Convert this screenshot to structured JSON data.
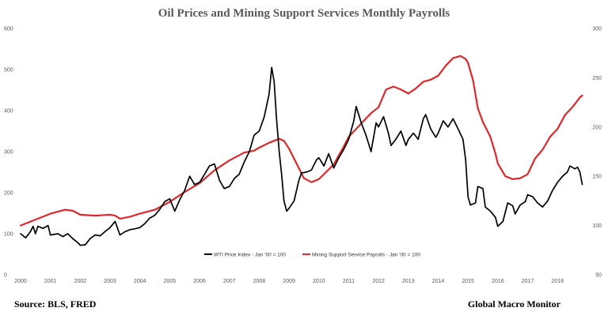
{
  "chart_data": {
    "type": "line",
    "title": "Oil Prices and Mining Support Services Monthly Payrolls",
    "x_ticks": [
      "2000",
      "2001",
      "2002",
      "2003",
      "2004",
      "2005",
      "2006",
      "2007",
      "2008",
      "2009",
      "2010",
      "2011",
      "2012",
      "2013",
      "2014",
      "2015",
      "2016",
      "2017",
      "2018"
    ],
    "left_axis": {
      "ylim": [
        0,
        600
      ],
      "ticks": [
        "0",
        "100",
        "200",
        "300",
        "400",
        "500",
        "600"
      ]
    },
    "right_axis": {
      "ylim": [
        50,
        300
      ],
      "ticks": [
        "50",
        "100",
        "150",
        "200",
        "250",
        "300"
      ]
    },
    "grid": false,
    "legend_position": "bottom-center",
    "series": [
      {
        "name": "WTI Price Index - Jan '00 = 100",
        "axis": "left",
        "color": "#000000",
        "points": [
          [
            2000.0,
            100
          ],
          [
            2000.17,
            90
          ],
          [
            2000.33,
            105
          ],
          [
            2000.42,
            118
          ],
          [
            2000.5,
            100
          ],
          [
            2000.58,
            118
          ],
          [
            2000.75,
            113
          ],
          [
            2000.92,
            120
          ],
          [
            2001.0,
            97
          ],
          [
            2001.25,
            100
          ],
          [
            2001.42,
            93
          ],
          [
            2001.58,
            100
          ],
          [
            2001.75,
            88
          ],
          [
            2001.92,
            78
          ],
          [
            2002.0,
            72
          ],
          [
            2002.17,
            73
          ],
          [
            2002.33,
            88
          ],
          [
            2002.5,
            97
          ],
          [
            2002.67,
            95
          ],
          [
            2002.83,
            105
          ],
          [
            2003.0,
            115
          ],
          [
            2003.17,
            130
          ],
          [
            2003.33,
            97
          ],
          [
            2003.5,
            105
          ],
          [
            2003.67,
            110
          ],
          [
            2003.83,
            112
          ],
          [
            2004.0,
            115
          ],
          [
            2004.17,
            125
          ],
          [
            2004.33,
            138
          ],
          [
            2004.5,
            145
          ],
          [
            2004.67,
            160
          ],
          [
            2004.83,
            178
          ],
          [
            2005.0,
            185
          ],
          [
            2005.17,
            155
          ],
          [
            2005.33,
            182
          ],
          [
            2005.5,
            205
          ],
          [
            2005.67,
            240
          ],
          [
            2005.83,
            220
          ],
          [
            2006.0,
            225
          ],
          [
            2006.17,
            245
          ],
          [
            2006.33,
            265
          ],
          [
            2006.5,
            270
          ],
          [
            2006.67,
            230
          ],
          [
            2006.83,
            210
          ],
          [
            2007.0,
            215
          ],
          [
            2007.17,
            235
          ],
          [
            2007.33,
            245
          ],
          [
            2007.5,
            275
          ],
          [
            2007.67,
            300
          ],
          [
            2007.83,
            340
          ],
          [
            2008.0,
            350
          ],
          [
            2008.17,
            385
          ],
          [
            2008.33,
            440
          ],
          [
            2008.42,
            505
          ],
          [
            2008.5,
            470
          ],
          [
            2008.58,
            380
          ],
          [
            2008.67,
            300
          ],
          [
            2008.75,
            245
          ],
          [
            2008.83,
            180
          ],
          [
            2008.92,
            155
          ],
          [
            2009.0,
            162
          ],
          [
            2009.17,
            180
          ],
          [
            2009.33,
            230
          ],
          [
            2009.42,
            248
          ],
          [
            2009.58,
            250
          ],
          [
            2009.75,
            255
          ],
          [
            2009.92,
            280
          ],
          [
            2010.0,
            285
          ],
          [
            2010.17,
            265
          ],
          [
            2010.33,
            295
          ],
          [
            2010.5,
            260
          ],
          [
            2010.67,
            285
          ],
          [
            2010.83,
            305
          ],
          [
            2011.0,
            330
          ],
          [
            2011.17,
            375
          ],
          [
            2011.25,
            410
          ],
          [
            2011.42,
            370
          ],
          [
            2011.58,
            340
          ],
          [
            2011.75,
            300
          ],
          [
            2011.92,
            370
          ],
          [
            2012.0,
            360
          ],
          [
            2012.17,
            385
          ],
          [
            2012.33,
            345
          ],
          [
            2012.42,
            315
          ],
          [
            2012.58,
            330
          ],
          [
            2012.75,
            350
          ],
          [
            2012.92,
            315
          ],
          [
            2013.0,
            330
          ],
          [
            2013.17,
            345
          ],
          [
            2013.33,
            330
          ],
          [
            2013.5,
            380
          ],
          [
            2013.58,
            390
          ],
          [
            2013.75,
            355
          ],
          [
            2013.92,
            335
          ],
          [
            2014.0,
            345
          ],
          [
            2014.17,
            375
          ],
          [
            2014.33,
            360
          ],
          [
            2014.5,
            380
          ],
          [
            2014.67,
            355
          ],
          [
            2014.83,
            330
          ],
          [
            2014.92,
            280
          ],
          [
            2015.0,
            190
          ],
          [
            2015.08,
            170
          ],
          [
            2015.25,
            175
          ],
          [
            2015.33,
            215
          ],
          [
            2015.5,
            210
          ],
          [
            2015.58,
            165
          ],
          [
            2015.75,
            155
          ],
          [
            2015.92,
            140
          ],
          [
            2016.0,
            118
          ],
          [
            2016.17,
            130
          ],
          [
            2016.33,
            175
          ],
          [
            2016.5,
            168
          ],
          [
            2016.58,
            148
          ],
          [
            2016.75,
            170
          ],
          [
            2016.92,
            178
          ],
          [
            2017.0,
            195
          ],
          [
            2017.17,
            190
          ],
          [
            2017.33,
            175
          ],
          [
            2017.5,
            165
          ],
          [
            2017.67,
            180
          ],
          [
            2017.83,
            205
          ],
          [
            2018.0,
            225
          ],
          [
            2018.17,
            240
          ],
          [
            2018.33,
            250
          ],
          [
            2018.42,
            265
          ],
          [
            2018.58,
            258
          ],
          [
            2018.67,
            262
          ],
          [
            2018.75,
            250
          ],
          [
            2018.83,
            220
          ]
        ]
      },
      {
        "name": "Mining Support Service Payrolls - Jan '00 = 100",
        "axis": "right",
        "color": "#e0282c",
        "points": [
          [
            2000.0,
            100
          ],
          [
            2000.5,
            106
          ],
          [
            2001.0,
            112
          ],
          [
            2001.5,
            116
          ],
          [
            2001.75,
            115
          ],
          [
            2002.0,
            111
          ],
          [
            2002.5,
            110
          ],
          [
            2003.0,
            111
          ],
          [
            2003.17,
            110
          ],
          [
            2003.33,
            107
          ],
          [
            2003.67,
            109
          ],
          [
            2004.0,
            112
          ],
          [
            2004.5,
            116
          ],
          [
            2005.0,
            124
          ],
          [
            2005.5,
            134
          ],
          [
            2006.0,
            143
          ],
          [
            2006.5,
            156
          ],
          [
            2007.0,
            166
          ],
          [
            2007.5,
            174
          ],
          [
            2007.83,
            176
          ],
          [
            2008.0,
            179
          ],
          [
            2008.33,
            184
          ],
          [
            2008.67,
            188
          ],
          [
            2008.83,
            186
          ],
          [
            2009.0,
            178
          ],
          [
            2009.25,
            163
          ],
          [
            2009.5,
            148
          ],
          [
            2009.75,
            144
          ],
          [
            2010.0,
            147
          ],
          [
            2010.5,
            162
          ],
          [
            2010.83,
            180
          ],
          [
            2011.0,
            190
          ],
          [
            2011.5,
            206
          ],
          [
            2011.75,
            214
          ],
          [
            2012.0,
            220
          ],
          [
            2012.25,
            238
          ],
          [
            2012.5,
            241
          ],
          [
            2012.75,
            238
          ],
          [
            2013.0,
            234
          ],
          [
            2013.25,
            239
          ],
          [
            2013.5,
            246
          ],
          [
            2013.75,
            248
          ],
          [
            2014.0,
            252
          ],
          [
            2014.25,
            262
          ],
          [
            2014.5,
            270
          ],
          [
            2014.75,
            272
          ],
          [
            2014.92,
            269
          ],
          [
            2015.0,
            265
          ],
          [
            2015.17,
            247
          ],
          [
            2015.33,
            219
          ],
          [
            2015.5,
            205
          ],
          [
            2015.75,
            190
          ],
          [
            2015.92,
            173
          ],
          [
            2016.0,
            163
          ],
          [
            2016.25,
            150
          ],
          [
            2016.5,
            147
          ],
          [
            2016.75,
            148
          ],
          [
            2017.0,
            152
          ],
          [
            2017.25,
            168
          ],
          [
            2017.5,
            177
          ],
          [
            2017.75,
            190
          ],
          [
            2018.0,
            198
          ],
          [
            2018.25,
            212
          ],
          [
            2018.5,
            220
          ],
          [
            2018.75,
            230
          ],
          [
            2018.83,
            232
          ]
        ]
      }
    ]
  },
  "footer": {
    "source": "Source: BLS,  FRED",
    "brand": "Global Macro Monitor"
  }
}
